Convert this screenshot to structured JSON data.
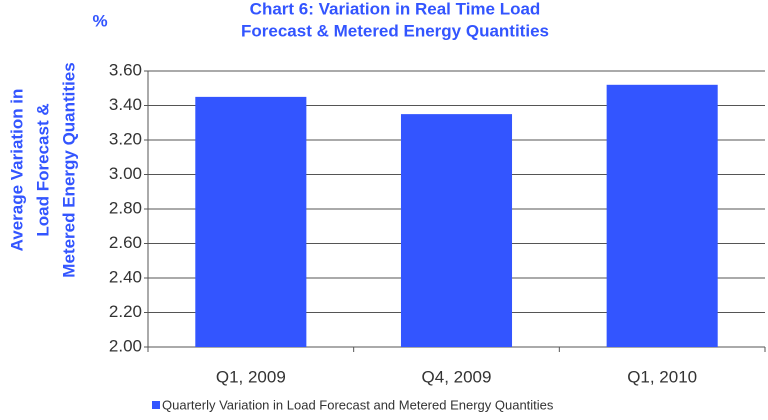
{
  "chart_data": {
    "type": "bar",
    "title": [
      "Chart 6: Variation in Real Time Load",
      "Forecast & Metered Energy Quantities"
    ],
    "unit": "%",
    "ylabel": [
      "Average Variation in",
      "Load Forecast &",
      "Metered Energy Quantities"
    ],
    "categories": [
      "Q1, 2009",
      "Q4, 2009",
      "Q1, 2010"
    ],
    "series": [
      {
        "name": "Quarterly Variation in Load Forecast and Metered Energy Quantities",
        "color": "#3355ff",
        "values": [
          3.45,
          3.35,
          3.52
        ]
      }
    ],
    "ylim": [
      2.0,
      3.6
    ],
    "yticks": [
      {
        "value": 2.0,
        "label": "2.00"
      },
      {
        "value": 2.2,
        "label": "2.20"
      },
      {
        "value": 2.4,
        "label": "2.40"
      },
      {
        "value": 2.6,
        "label": "2.60"
      },
      {
        "value": 2.8,
        "label": "2.80"
      },
      {
        "value": 3.0,
        "label": "3.00"
      },
      {
        "value": 3.2,
        "label": "3.20"
      },
      {
        "value": 3.4,
        "label": "3.40"
      },
      {
        "value": 3.6,
        "label": "3.60"
      }
    ],
    "grid": true,
    "legend": "bottom"
  }
}
